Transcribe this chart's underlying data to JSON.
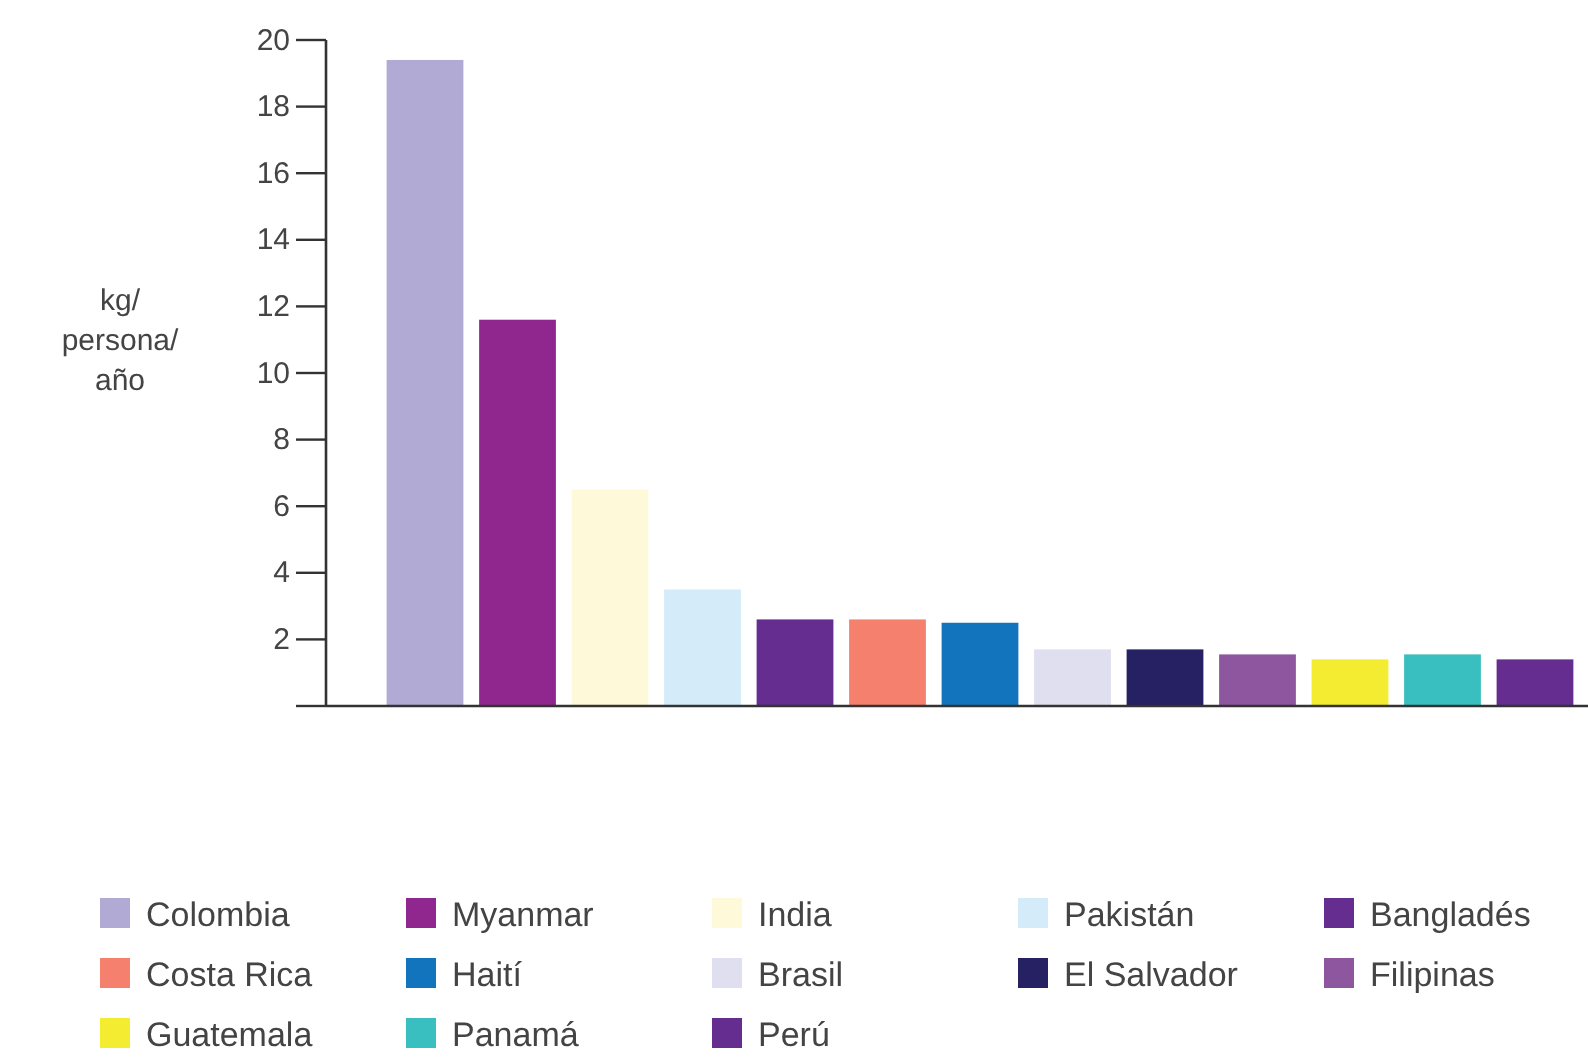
{
  "chart_data": {
    "type": "bar",
    "ylabel": "kg/\npersona/\naño",
    "categories": [
      null,
      null,
      null,
      null,
      null,
      null,
      null,
      null,
      null,
      null,
      null,
      null,
      null
    ],
    "series": [
      {
        "name": "Colombia",
        "color": "#b0aad4",
        "values": [
          19.4,
          null,
          null,
          null,
          null,
          null,
          null,
          null,
          null,
          null,
          null,
          null,
          null
        ]
      },
      {
        "name": "Myanmar",
        "color": "#90278e",
        "values": [
          null,
          11.6,
          null,
          null,
          null,
          null,
          null,
          null,
          null,
          null,
          null,
          null,
          null
        ]
      },
      {
        "name": "India",
        "color": "#fef9d8",
        "values": [
          null,
          null,
          6.5,
          null,
          null,
          null,
          null,
          null,
          null,
          null,
          null,
          null,
          null
        ]
      },
      {
        "name": "Pakistán",
        "color": "#d4ecf9",
        "values": [
          null,
          null,
          null,
          3.5,
          null,
          null,
          null,
          null,
          null,
          null,
          null,
          null,
          null
        ]
      },
      {
        "name": "Bangladés",
        "color": "#652d90",
        "values": [
          null,
          null,
          null,
          null,
          2.6,
          null,
          null,
          null,
          null,
          null,
          null,
          null,
          null
        ]
      },
      {
        "name": "Costa Rica",
        "color": "#f4806d",
        "values": [
          null,
          null,
          null,
          null,
          null,
          2.6,
          null,
          null,
          null,
          null,
          null,
          null,
          null
        ]
      },
      {
        "name": "Haití",
        "color": "#1174bd",
        "values": [
          null,
          null,
          null,
          null,
          null,
          null,
          2.5,
          null,
          null,
          null,
          null,
          null,
          null
        ]
      },
      {
        "name": "Brasil",
        "color": "#e0dfef",
        "values": [
          null,
          null,
          null,
          null,
          null,
          null,
          null,
          1.7,
          null,
          null,
          null,
          null,
          null
        ]
      },
      {
        "name": "El Salvador",
        "color": "#252162",
        "values": [
          null,
          null,
          null,
          null,
          null,
          null,
          null,
          null,
          1.7,
          null,
          null,
          null,
          null
        ]
      },
      {
        "name": "Filipinas",
        "color": "#8f56a0",
        "values": [
          null,
          null,
          null,
          null,
          null,
          null,
          null,
          null,
          null,
          1.55,
          null,
          null,
          null
        ]
      },
      {
        "name": "Guatemala",
        "color": "#f3ec30",
        "values": [
          null,
          null,
          null,
          null,
          null,
          null,
          null,
          null,
          null,
          null,
          1.4,
          null,
          null
        ]
      },
      {
        "name": "Panamá",
        "color": "#3abfc0",
        "values": [
          null,
          null,
          null,
          null,
          null,
          null,
          null,
          null,
          null,
          null,
          null,
          1.55,
          null
        ]
      },
      {
        "name": "Perú",
        "color": "#652d90",
        "values": [
          null,
          null,
          null,
          null,
          null,
          null,
          null,
          null,
          null,
          null,
          null,
          null,
          1.4
        ]
      }
    ],
    "ylim": [
      0,
      20
    ],
    "yticks": [
      {
        "value": 0,
        "label": null
      },
      2,
      4,
      6,
      8,
      10,
      12,
      14,
      16,
      18,
      20
    ],
    "legend": "bottom",
    "tick_labels": "y"
  }
}
